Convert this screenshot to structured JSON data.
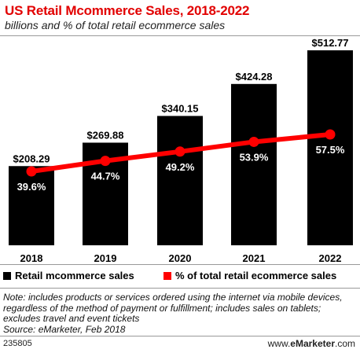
{
  "title": "US Retail Mcommerce Sales, 2018-2022",
  "subtitle": "billions and % of total retail ecommerce sales",
  "note": "Note: includes products or services ordered using the internet via mobile devices, regardless of the method of payment or fulfillment; includes sales on tablets; excludes travel and event tickets",
  "source": "Source: eMarketer, Feb 2018",
  "footer": {
    "chart_id": "235805",
    "brand_prefix": "www.",
    "brand_bold": "eMarketer",
    "brand_suffix": ".com"
  },
  "colors": {
    "bar": "#000000",
    "line": "#ff0000",
    "title": "#e20000"
  },
  "chart_data": {
    "type": "bar",
    "categories": [
      "2018",
      "2019",
      "2020",
      "2021",
      "2022"
    ],
    "series": [
      {
        "name": "Retail mcommerce sales",
        "type": "bar",
        "values": [
          208.29,
          269.88,
          340.15,
          424.28,
          512.77
        ],
        "labels": [
          "$208.29",
          "$269.88",
          "$340.15",
          "$424.28",
          "$512.77"
        ]
      },
      {
        "name": "% of total retail ecommerce sales",
        "type": "line",
        "values": [
          39.6,
          44.7,
          49.2,
          53.9,
          57.5
        ],
        "labels": [
          "39.6%",
          "44.7%",
          "49.2%",
          "53.9%",
          "57.5%"
        ]
      }
    ],
    "legend": "bottom"
  }
}
